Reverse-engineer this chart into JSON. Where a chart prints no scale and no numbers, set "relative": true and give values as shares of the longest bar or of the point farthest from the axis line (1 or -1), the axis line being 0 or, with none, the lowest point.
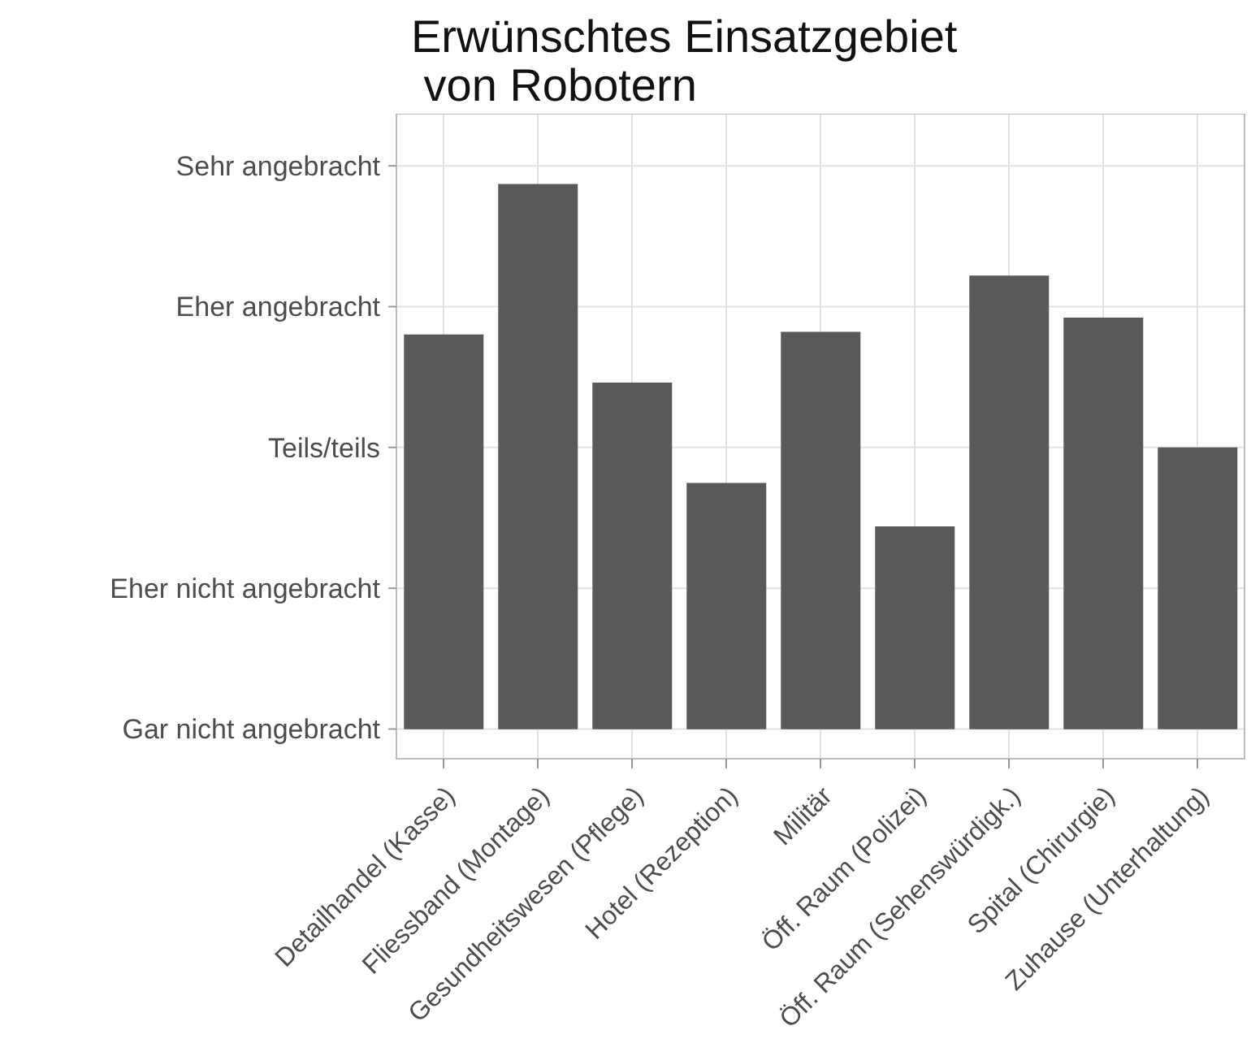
{
  "chart_data": {
    "type": "bar",
    "title": "Erwünschtes Einsatzgebiet\n von Robotern",
    "categories": [
      "Detailhandel (Kasse)",
      "Fliessband (Montage)",
      "Gesundheitswesen (Pflege)",
      "Hotel (Rezeption)",
      "Militär",
      "Öff. Raum (Polizei)",
      "Öff. Raum (Sehenswürdigk.)",
      "Spital (Chirurgie)",
      "Zuhause (Unterhaltung)"
    ],
    "values": [
      0.724,
      1,
      0.636,
      0.452,
      0.729,
      0.372,
      0.832,
      0.755,
      0.517
    ],
    "relative": true,
    "color": "#595959",
    "annotations": [
      "Gar nicht angebracht",
      "Eher nicht angebracht",
      "Teils/teils",
      "Eher angebracht",
      "Sehr angebracht"
    ],
    "grid": true
  }
}
